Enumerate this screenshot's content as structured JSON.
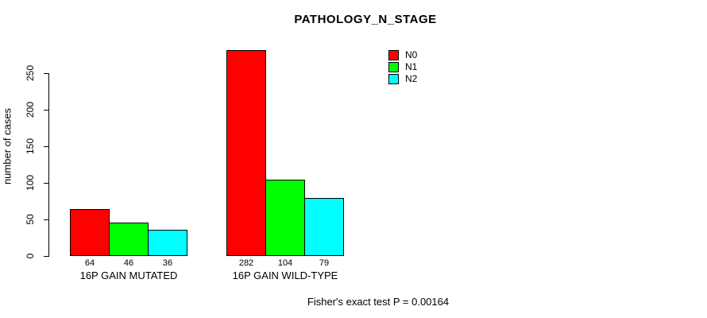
{
  "chart_data": {
    "type": "bar",
    "title": "PATHOLOGY_N_STAGE",
    "xlabel": "",
    "ylabel": "number of cases",
    "categories": [
      "16P GAIN MUTATED",
      "16P GAIN WILD-TYPE"
    ],
    "series": [
      {
        "name": "N0",
        "color": "#ff0000",
        "values": [
          64,
          282
        ]
      },
      {
        "name": "N1",
        "color": "#00ff00",
        "values": [
          46,
          104
        ]
      },
      {
        "name": "N2",
        "color": "#00ffff",
        "values": [
          36,
          79
        ]
      }
    ],
    "bar_value_labels": [
      [
        "64",
        "46",
        "36"
      ],
      [
        "282",
        "104",
        "79"
      ]
    ],
    "yticks": [
      0,
      50,
      100,
      150,
      200,
      250
    ],
    "ylim": [
      0,
      290
    ],
    "grid": false,
    "legend_position": "top-right",
    "annotation": "Fisher's exact test P = 0.00164"
  },
  "colors": {
    "background": "#ffffff",
    "axis": "#000000",
    "text": "#000000",
    "n0": "#ff0000",
    "n1": "#00ff00",
    "n2": "#00ffff"
  }
}
